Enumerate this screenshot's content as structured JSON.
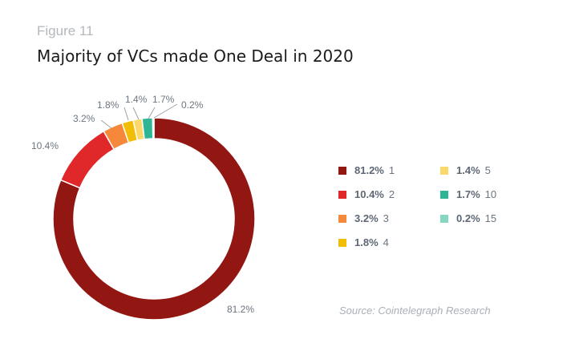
{
  "figure_label": "Figure 11",
  "title": "Majority of VCs made One Deal in 2020",
  "source": "Source: Cointelegraph Research",
  "chart_data": {
    "type": "pie",
    "variant": "donut",
    "title": "Majority of VCs made One Deal in 2020",
    "legend_position": "right",
    "slices": [
      {
        "category": "1",
        "value": 81.2,
        "label": "81.2%",
        "color": "#921612"
      },
      {
        "category": "2",
        "value": 10.4,
        "label": "10.4%",
        "color": "#e0282a"
      },
      {
        "category": "3",
        "value": 3.2,
        "label": "3.2%",
        "color": "#f5883a"
      },
      {
        "category": "4",
        "value": 1.8,
        "label": "1.8%",
        "color": "#f2bd07"
      },
      {
        "category": "5",
        "value": 1.4,
        "label": "1.4%",
        "color": "#fbd86a"
      },
      {
        "category": "10",
        "value": 1.7,
        "label": "1.7%",
        "color": "#2db595"
      },
      {
        "category": "15",
        "value": 0.2,
        "label": "0.2%",
        "color": "#86d6c2"
      }
    ]
  }
}
